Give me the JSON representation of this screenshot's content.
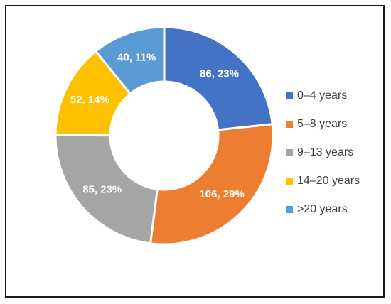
{
  "chart_data": {
    "type": "pie",
    "variant": "donut",
    "categories": [
      "0–4 years",
      "5–8 years",
      "9–13 years",
      "14–20 years",
      ">20 years"
    ],
    "values": [
      86,
      106,
      85,
      52,
      40
    ],
    "data_labels": [
      "86, 23%",
      "106, 29%",
      "85, 23%",
      "52, 14%",
      "40, 11%"
    ],
    "colors": [
      "#4472c4",
      "#ed7d31",
      "#a5a5a5",
      "#ffc000",
      "#5b9bd5"
    ],
    "legend": "right",
    "title": ""
  }
}
